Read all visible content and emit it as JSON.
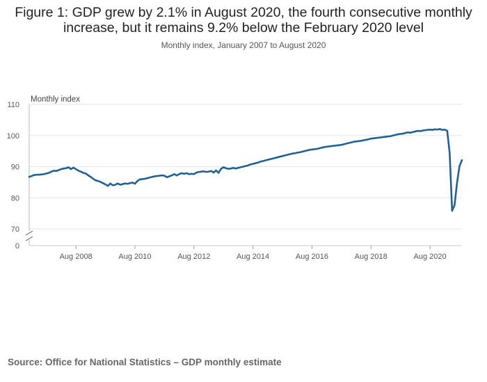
{
  "title": "Figure 1: GDP grew by 2.1% in August 2020, the fourth consecutive monthly increase, but it remains 9.2% below the February 2020 level",
  "subtitle": "Monthly index, January 2007 to August 2020",
  "source": "Source: Office for National Statistics – GDP monthly estimate",
  "chart_data": {
    "type": "line",
    "title": "Figure 1: GDP grew by 2.1% in August 2020, the fourth consecutive monthly increase, but it remains 9.2% below the February 2020 level",
    "subtitle": "Monthly index, January 2007 to August 2020",
    "ylabel": "Monthly index",
    "xlabel": "",
    "ylim": [
      70,
      110
    ],
    "y_axis_break": true,
    "y_ticks": [
      0,
      70,
      80,
      90,
      100,
      110
    ],
    "x_ticks": [
      "Aug 2008",
      "Aug 2010",
      "Aug 2012",
      "Aug 2014",
      "Aug 2016",
      "Aug 2018",
      "Aug 2020"
    ],
    "grid": true,
    "line_color": "#206095",
    "series": [
      {
        "start": "2007-01",
        "values": [
          86.7,
          87.0,
          87.3,
          87.4,
          87.4,
          87.5,
          87.6,
          87.8,
          88.0,
          88.4,
          88.7,
          88.6,
          88.9,
          89.2,
          89.4,
          89.5,
          89.8,
          89.2,
          89.7,
          89.2,
          88.7,
          88.4,
          88.0,
          87.8,
          87.2,
          86.7,
          86.1,
          85.6,
          85.4,
          85.1,
          84.7,
          84.3,
          83.8,
          84.6,
          84.0,
          84.2,
          84.6,
          84.2,
          84.4,
          84.6,
          84.5,
          84.7,
          84.9,
          84.5,
          85.4,
          85.9,
          86.0,
          86.1,
          86.3,
          86.5,
          86.7,
          86.9,
          87.0,
          87.1,
          87.2,
          87.1,
          86.6,
          86.9,
          87.2,
          87.6,
          87.2,
          87.6,
          87.9,
          87.7,
          87.9,
          87.6,
          87.7,
          87.6,
          88.1,
          88.3,
          88.4,
          88.5,
          88.3,
          88.4,
          88.6,
          88.1,
          88.8,
          88.0,
          89.3,
          89.8,
          89.5,
          89.3,
          89.4,
          89.6,
          89.4,
          89.6,
          89.8,
          90.0,
          90.2,
          90.4,
          90.7,
          90.9,
          91.1,
          91.3,
          91.6,
          91.8,
          92.0,
          92.2,
          92.4,
          92.6,
          92.8,
          93.0,
          93.2,
          93.4,
          93.6,
          93.8,
          94.0,
          94.2,
          94.3,
          94.5,
          94.6,
          94.8,
          95.0,
          95.2,
          95.4,
          95.5,
          95.6,
          95.7,
          95.9,
          96.1,
          96.3,
          96.4,
          96.5,
          96.6,
          96.7,
          96.8,
          96.9,
          97.0,
          97.2,
          97.4,
          97.6,
          97.8,
          98.0,
          98.1,
          98.2,
          98.3,
          98.5,
          98.6,
          98.8,
          99.0,
          99.1,
          99.2,
          99.3,
          99.4,
          99.5,
          99.6,
          99.7,
          99.8,
          100.0,
          100.2,
          100.4,
          100.5,
          100.6,
          100.8,
          101.0,
          100.9,
          101.1,
          101.3,
          101.5,
          101.4,
          101.6,
          101.7,
          101.8,
          101.9,
          101.8,
          102.0,
          101.9,
          102.1,
          101.8,
          101.9,
          101.5,
          94.4,
          75.8,
          77.7,
          84.8,
          90.2,
          92.1
        ]
      }
    ]
  }
}
